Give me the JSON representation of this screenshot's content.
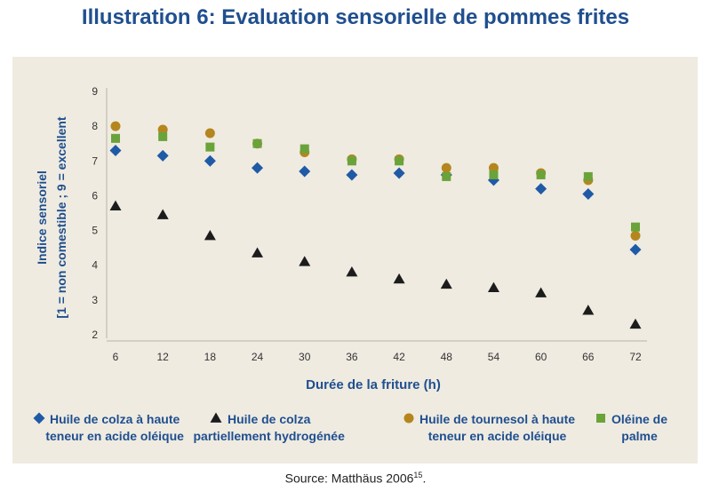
{
  "page": {
    "title": "Illustration 6:  Evaluation sensorielle de pommes frites",
    "source_prefix": "Source:",
    "source_text": " Matthäus 2006",
    "source_sup": "15",
    "source_suffix": "."
  },
  "chart_data": {
    "type": "scatter",
    "title": "Illustration 6:  Evaluation sensorielle de pommes frites",
    "xlabel": "Durée de la friture (h)",
    "ylabel_line1": "Indice sensoriel",
    "ylabel_line2": "[1 = non comestible ; 9 = excellent",
    "x": [
      6,
      12,
      18,
      24,
      30,
      36,
      42,
      48,
      54,
      60,
      66,
      72
    ],
    "x_ticks": [
      "6",
      "12",
      "18",
      "24",
      "30",
      "36",
      "42",
      "48",
      "54",
      "60",
      "66",
      "72"
    ],
    "y_ticks": [
      "2",
      "3",
      "4",
      "5",
      "6",
      "7",
      "8",
      "9"
    ],
    "ylim": [
      2,
      9
    ],
    "grid": false,
    "legend_position": "bottom",
    "series": [
      {
        "name_line1": "Huile de colza à haute",
        "name_line2": "teneur en acide oléique",
        "marker": "diamond",
        "color": "#1f5aa6",
        "values": [
          7.3,
          7.15,
          7.0,
          6.8,
          6.7,
          6.6,
          6.65,
          6.6,
          6.45,
          6.2,
          6.05,
          4.45
        ]
      },
      {
        "name_line1": "Huile de colza",
        "name_line2": "partiellement hydrogénée",
        "marker": "triangle",
        "color": "#1c1c1c",
        "values": [
          5.7,
          5.45,
          4.85,
          4.35,
          4.1,
          3.8,
          3.6,
          3.45,
          3.35,
          3.2,
          2.7,
          2.3
        ]
      },
      {
        "name_line1": "Huile de tournesol à haute",
        "name_line2": "teneur en acide oléique",
        "marker": "circle",
        "color": "#b5861e",
        "values": [
          8.0,
          7.9,
          7.8,
          7.5,
          7.25,
          7.05,
          7.05,
          6.8,
          6.8,
          6.65,
          6.45,
          4.85
        ]
      },
      {
        "name_line1": "Oléine de",
        "name_line2": "palme",
        "marker": "square",
        "color": "#6aa33a",
        "values": [
          7.65,
          7.7,
          7.4,
          7.5,
          7.35,
          7.0,
          7.0,
          6.55,
          6.6,
          6.6,
          6.55,
          5.1
        ]
      }
    ]
  }
}
